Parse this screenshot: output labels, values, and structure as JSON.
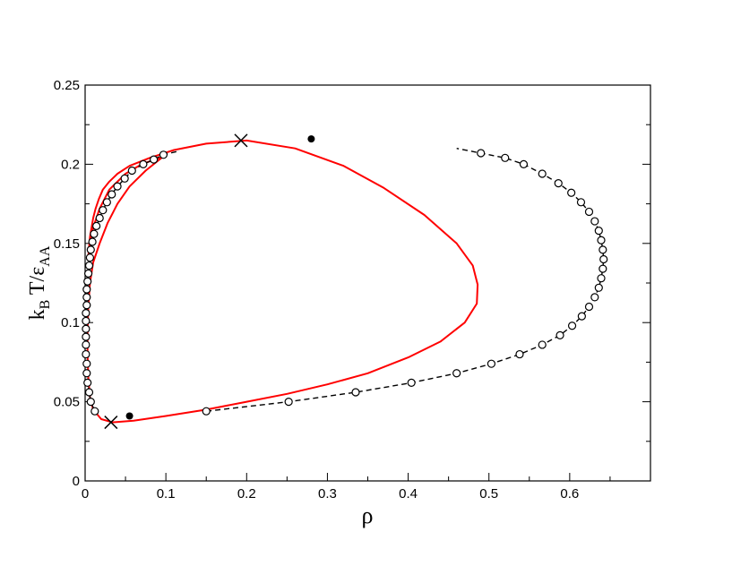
{
  "chart_data": {
    "type": "line",
    "xlabel": "ρ",
    "ylabel": {
      "k": "k",
      "k_sub": "B",
      "mid": " T/ε",
      "eps_sub": "AA"
    },
    "xlim": [
      0,
      0.7
    ],
    "ylim": [
      0,
      0.25
    ],
    "x_ticks": [
      0,
      0.1,
      0.2,
      0.3,
      0.4,
      0.5,
      0.6
    ],
    "x_tick_labels": [
      "0",
      "0.1",
      "0.2",
      "0.3",
      "0.4",
      "0.5",
      "0.6"
    ],
    "y_ticks": [
      0,
      0.05,
      0.1,
      0.15,
      0.2,
      0.25
    ],
    "y_tick_labels": [
      "0",
      "0.05",
      "0.1",
      "0.15",
      "0.2",
      "0.25"
    ],
    "grid": false,
    "colors": {
      "red_curve": "#ff0000",
      "dashed": "#000000"
    },
    "series": [
      {
        "style": "solid-red",
        "x": [
          0.097,
          0.075,
          0.055,
          0.04,
          0.028,
          0.018,
          0.01,
          0.006,
          0.004,
          0.003,
          0.003,
          0.004,
          0.006,
          0.01,
          0.02,
          0.034,
          0.06,
          0.1,
          0.15,
          0.2,
          0.25,
          0.3,
          0.35,
          0.4,
          0.44,
          0.47,
          0.485,
          0.486,
          0.48,
          0.46,
          0.42,
          0.37,
          0.32,
          0.26,
          0.2,
          0.15,
          0.11,
          0.08,
          0.055,
          0.04,
          0.03,
          0.022,
          0.017,
          0.013,
          0.01,
          0.008,
          0.006,
          0.005,
          0.004,
          0.004,
          0.004,
          0.006,
          0.01,
          0.018,
          0.03,
          0.05,
          0.07,
          0.097
        ],
        "y": [
          0.205,
          0.196,
          0.186,
          0.175,
          0.163,
          0.15,
          0.138,
          0.125,
          0.11,
          0.095,
          0.08,
          0.065,
          0.053,
          0.045,
          0.039,
          0.037,
          0.038,
          0.041,
          0.045,
          0.05,
          0.055,
          0.061,
          0.068,
          0.078,
          0.088,
          0.1,
          0.112,
          0.124,
          0.136,
          0.15,
          0.168,
          0.185,
          0.199,
          0.21,
          0.215,
          0.213,
          0.209,
          0.204,
          0.199,
          0.194,
          0.189,
          0.184,
          0.178,
          0.172,
          0.166,
          0.16,
          0.154,
          0.148,
          0.142,
          0.142,
          0.142,
          0.148,
          0.16,
          0.172,
          0.184,
          0.194,
          0.2,
          0.205
        ]
      },
      {
        "style": "dashed-open-circles",
        "left_x": [
          0.113,
          0.097,
          0.085,
          0.072,
          0.058,
          0.049,
          0.04,
          0.033,
          0.027,
          0.022,
          0.018,
          0.014,
          0.011,
          0.009,
          0.007,
          0.006,
          0.005,
          0.004,
          0.003,
          0.002,
          0.002,
          0.002,
          0.001,
          0.001,
          0.001,
          0.001,
          0.001,
          0.001,
          0.002,
          0.002,
          0.003,
          0.005,
          0.007,
          0.012
        ],
        "left_y": [
          0.208,
          0.206,
          0.203,
          0.2,
          0.196,
          0.191,
          0.186,
          0.181,
          0.176,
          0.171,
          0.166,
          0.161,
          0.156,
          0.151,
          0.146,
          0.141,
          0.136,
          0.131,
          0.126,
          0.121,
          0.116,
          0.111,
          0.106,
          0.101,
          0.096,
          0.091,
          0.086,
          0.08,
          0.074,
          0.068,
          0.062,
          0.056,
          0.05,
          0.044
        ],
        "right_x": [
          0.15,
          0.252,
          0.335,
          0.404,
          0.46,
          0.503,
          0.538,
          0.566,
          0.588,
          0.603,
          0.615,
          0.624,
          0.631,
          0.636,
          0.639,
          0.641,
          0.642,
          0.641,
          0.639,
          0.636,
          0.631,
          0.624,
          0.614,
          0.602,
          0.586,
          0.566,
          0.543,
          0.52,
          0.49,
          0.46
        ],
        "right_y": [
          0.044,
          0.05,
          0.056,
          0.062,
          0.068,
          0.074,
          0.08,
          0.086,
          0.092,
          0.098,
          0.104,
          0.11,
          0.116,
          0.122,
          0.128,
          0.134,
          0.14,
          0.146,
          0.152,
          0.158,
          0.164,
          0.17,
          0.176,
          0.182,
          0.188,
          0.194,
          0.2,
          0.204,
          0.207,
          0.21
        ],
        "left_markers_x": [
          0.097,
          0.085,
          0.072,
          0.058,
          0.049,
          0.04,
          0.033,
          0.027,
          0.022,
          0.018,
          0.014,
          0.011,
          0.009,
          0.007,
          0.006,
          0.005,
          0.004,
          0.003,
          0.002,
          0.002,
          0.002,
          0.001,
          0.001,
          0.001,
          0.001,
          0.001,
          0.001,
          0.002,
          0.002,
          0.003,
          0.005,
          0.007,
          0.012
        ],
        "left_markers_y": [
          0.206,
          0.203,
          0.2,
          0.196,
          0.191,
          0.186,
          0.181,
          0.176,
          0.171,
          0.166,
          0.161,
          0.156,
          0.151,
          0.146,
          0.141,
          0.136,
          0.131,
          0.126,
          0.121,
          0.116,
          0.111,
          0.106,
          0.101,
          0.096,
          0.091,
          0.086,
          0.08,
          0.074,
          0.068,
          0.062,
          0.056,
          0.05,
          0.044
        ],
        "right_markers_x": [
          0.15,
          0.252,
          0.335,
          0.404,
          0.46,
          0.503,
          0.538,
          0.566,
          0.588,
          0.603,
          0.615,
          0.624,
          0.631,
          0.636,
          0.639,
          0.641,
          0.642,
          0.641,
          0.639,
          0.636,
          0.631,
          0.624,
          0.614,
          0.602,
          0.586,
          0.566,
          0.543,
          0.52,
          0.49
        ],
        "right_markers_y": [
          0.044,
          0.05,
          0.056,
          0.062,
          0.068,
          0.074,
          0.08,
          0.086,
          0.092,
          0.098,
          0.104,
          0.11,
          0.116,
          0.122,
          0.128,
          0.134,
          0.14,
          0.146,
          0.152,
          0.158,
          0.164,
          0.17,
          0.176,
          0.182,
          0.188,
          0.194,
          0.2,
          0.204,
          0.207
        ]
      }
    ],
    "cross_markers": [
      {
        "x": 0.193,
        "y": 0.215
      },
      {
        "x": 0.032,
        "y": 0.037
      }
    ],
    "filled_points": [
      {
        "x": 0.28,
        "y": 0.216
      },
      {
        "x": 0.055,
        "y": 0.041
      }
    ]
  }
}
